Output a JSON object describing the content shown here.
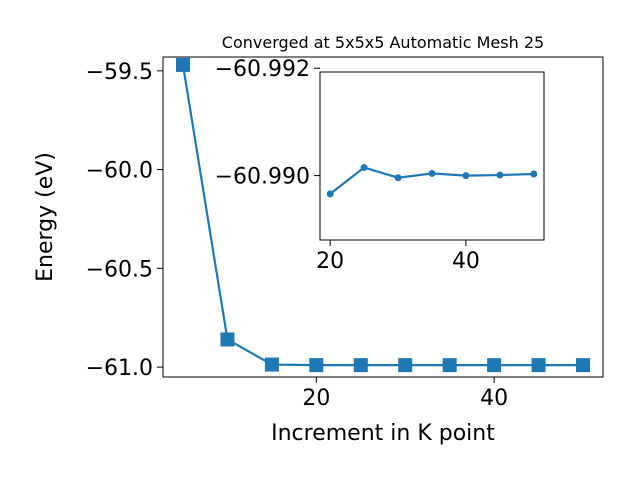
{
  "chart_data": [
    {
      "type": "line",
      "title": "Converged at 5x5x5 Automatic Mesh 25",
      "xlabel": "Increment in K point",
      "ylabel": "Energy (eV)",
      "x": [
        5,
        10,
        15,
        20,
        25,
        30,
        35,
        40,
        45,
        50
      ],
      "series": [
        {
          "values": [
            -59.47,
            -60.86,
            -60.987,
            -60.99,
            -60.99,
            -60.99,
            -60.99,
            -60.99,
            -60.99,
            -60.99
          ],
          "color": "#1f77b4",
          "marker": "square"
        }
      ],
      "xlim": [
        2.75,
        52.25
      ],
      "ylim": [
        -61.05,
        -59.43
      ],
      "xticks": [
        20,
        40
      ],
      "xtick_labels": [
        "20",
        "40"
      ],
      "yticks": [
        -59.5,
        -60.0,
        -60.5,
        -61.0
      ],
      "ytick_labels": [
        "−59.5",
        "−60.0",
        "−60.5",
        "−61.0"
      ],
      "grid": false
    },
    {
      "type": "line",
      "title": "",
      "xlabel": "",
      "ylabel": "",
      "x": [
        20,
        25,
        30,
        35,
        40,
        45,
        50
      ],
      "series": [
        {
          "values": [
            -60.98966,
            -60.99015,
            -60.98996,
            -60.99004,
            -60.99,
            -60.99001,
            -60.99003
          ],
          "color": "#1f77b4",
          "marker": "circle"
        }
      ],
      "xlim": [
        18.5,
        51.5
      ],
      "ylim": [
        -60.9888,
        -60.99193
      ],
      "xticks": [
        20,
        40
      ],
      "xtick_labels": [
        "20",
        "40"
      ],
      "yticks": [
        -60.992,
        -60.99
      ],
      "ytick_labels": [
        "−60.992",
        "−60.990"
      ],
      "grid": false
    }
  ]
}
